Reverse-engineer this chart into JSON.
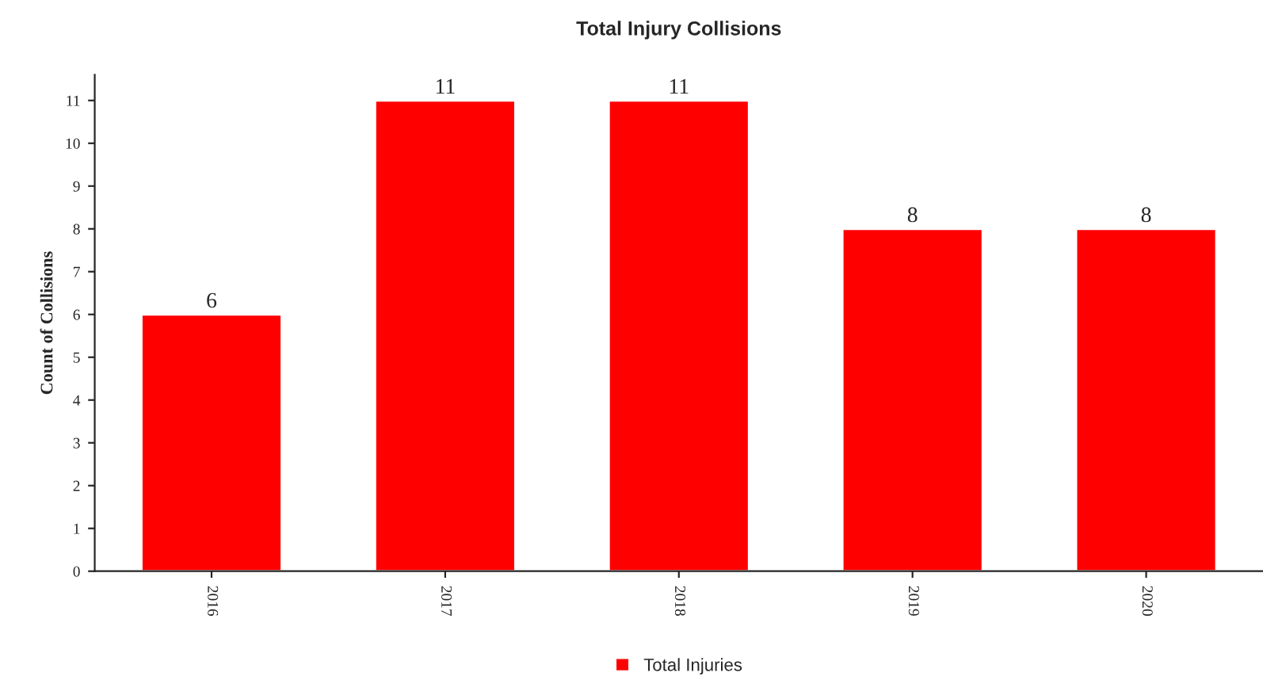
{
  "chart_data": {
    "type": "bar",
    "title": "Total Injury Collisions",
    "ylabel": "Count of Collisions",
    "categories": [
      "2016",
      "2017",
      "2018",
      "2019",
      "2020"
    ],
    "series": [
      {
        "name": "Total Injuries",
        "color": "#ff0000",
        "values": [
          6,
          11,
          11,
          8,
          8
        ]
      }
    ],
    "ylim": [
      0,
      11.6
    ],
    "yticks": [
      0,
      1,
      2,
      3,
      4,
      5,
      6,
      7,
      8,
      9,
      10,
      11
    ],
    "data_labels": true,
    "grid": false,
    "legend": "bottom"
  }
}
